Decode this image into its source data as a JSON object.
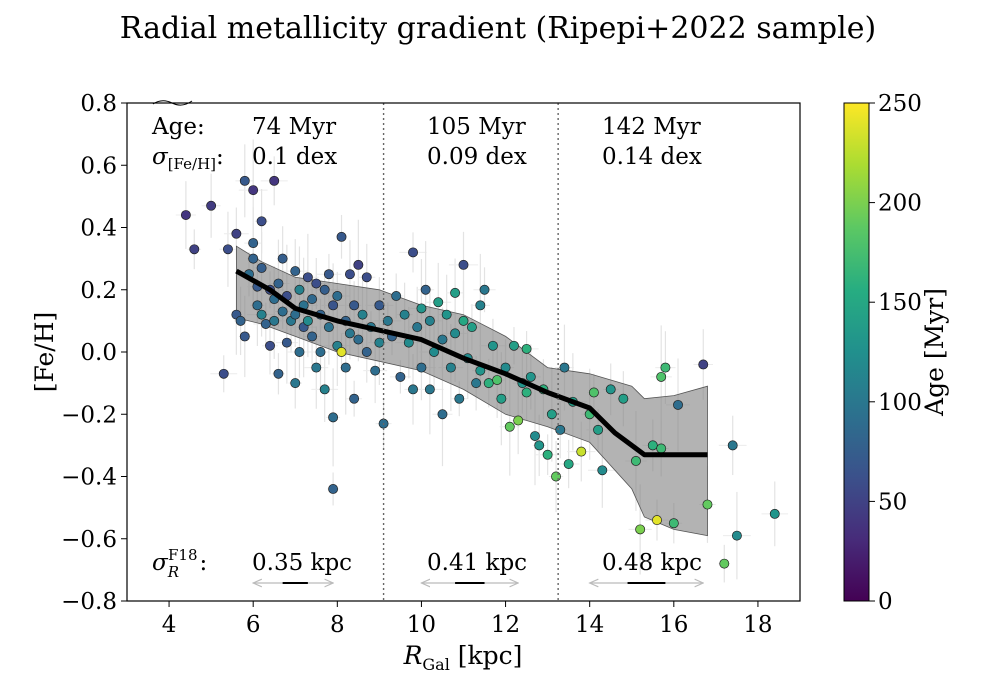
{
  "chart_data": {
    "type": "scatter",
    "title": "Radial metallicity gradient (Ripepi+2022 sample)",
    "xlabel": "R_Gal [kpc]",
    "ylabel": "[Fe/H]",
    "xlim": [
      3,
      19
    ],
    "ylim": [
      -0.8,
      0.8
    ],
    "xticks": [
      "4",
      "6",
      "8",
      "10",
      "12",
      "14",
      "16",
      "18"
    ],
    "yticks": [
      "0.8",
      "0.6",
      "0.4",
      "0.2",
      "0.0",
      "−0.2",
      "−0.4",
      "−0.6",
      "−0.8"
    ],
    "colorbar": {
      "label": "Age [Myr]",
      "range": [
        0,
        250
      ],
      "ticks": [
        "0",
        "50",
        "100",
        "150",
        "200",
        "250"
      ],
      "colormap": "viridis"
    },
    "bin_edges_kpc": [
      9.1,
      13.25
    ],
    "row_labels": {
      "age": "Age:",
      "sigma_feh": "σ[Fe/H]:",
      "sigma_r": "σR F18:"
    },
    "bins": [
      {
        "age": "74 Myr",
        "sigma_feh": "0.1 dex",
        "sigma_r": "0.35 kpc",
        "arrow_from": 6.0,
        "arrow_to": 7.9,
        "bar_from": 6.7,
        "bar_to": 7.3
      },
      {
        "age": "105 Myr",
        "sigma_feh": "0.09 dex",
        "sigma_r": "0.41 kpc",
        "arrow_from": 10.0,
        "arrow_to": 12.3,
        "bar_from": 10.8,
        "bar_to": 11.5
      },
      {
        "age": "142 Myr",
        "sigma_feh": "0.14 dex",
        "sigma_r": "0.48 kpc",
        "arrow_from": 14.0,
        "arrow_to": 16.7,
        "bar_from": 14.9,
        "bar_to": 15.8
      }
    ],
    "running_median": {
      "x": [
        5.6,
        6.4,
        7.0,
        8.0,
        9.0,
        10.0,
        11.0,
        12.0,
        13.0,
        14.0,
        14.6,
        15.3,
        16.0,
        16.8
      ],
      "y": [
        0.26,
        0.2,
        0.14,
        0.1,
        0.07,
        0.04,
        -0.02,
        -0.07,
        -0.13,
        -0.18,
        -0.26,
        -0.33,
        -0.33,
        -0.33
      ]
    },
    "band": {
      "x": [
        5.6,
        6.2,
        7.0,
        8.0,
        9.0,
        10.0,
        11.0,
        12.0,
        13.0,
        14.0,
        15.0,
        15.3,
        16.0,
        16.8
      ],
      "upper": [
        0.34,
        0.29,
        0.24,
        0.22,
        0.2,
        0.15,
        0.12,
        0.05,
        -0.05,
        -0.07,
        -0.11,
        -0.15,
        -0.14,
        -0.11
      ],
      "lower": [
        0.11,
        0.09,
        0.05,
        0.0,
        -0.03,
        -0.06,
        -0.12,
        -0.2,
        -0.24,
        -0.29,
        -0.44,
        -0.53,
        -0.57,
        -0.59
      ]
    },
    "points": [
      [
        4.4,
        0.44,
        40
      ],
      [
        4.6,
        0.33,
        50
      ],
      [
        5.0,
        0.47,
        45
      ],
      [
        5.3,
        -0.07,
        60
      ],
      [
        5.4,
        0.33,
        60
      ],
      [
        5.6,
        0.38,
        50
      ],
      [
        5.6,
        0.12,
        70
      ],
      [
        5.7,
        0.1,
        80
      ],
      [
        5.8,
        0.05,
        70
      ],
      [
        5.8,
        0.55,
        70
      ],
      [
        5.9,
        0.25,
        90
      ],
      [
        6.0,
        0.52,
        40
      ],
      [
        6.0,
        0.35,
        80
      ],
      [
        6.0,
        0.3,
        80
      ],
      [
        6.1,
        0.21,
        70
      ],
      [
        6.1,
        0.15,
        90
      ],
      [
        6.2,
        0.12,
        110
      ],
      [
        6.2,
        0.42,
        60
      ],
      [
        6.2,
        0.27,
        75
      ],
      [
        6.3,
        0.09,
        80
      ],
      [
        6.4,
        0.02,
        60
      ],
      [
        6.4,
        0.2,
        60
      ],
      [
        6.5,
        0.55,
        40
      ],
      [
        6.5,
        0.17,
        90
      ],
      [
        6.5,
        0.1,
        100
      ],
      [
        6.6,
        0.22,
        80
      ],
      [
        6.6,
        -0.07,
        80
      ],
      [
        6.7,
        0.3,
        75
      ],
      [
        6.7,
        0.13,
        90
      ],
      [
        6.8,
        0.03,
        70
      ],
      [
        6.8,
        0.18,
        60
      ],
      [
        6.9,
        0.1,
        100
      ],
      [
        7.0,
        0.26,
        80
      ],
      [
        7.0,
        0.12,
        90
      ],
      [
        7.0,
        -0.1,
        100
      ],
      [
        7.1,
        0.2,
        110
      ],
      [
        7.1,
        0.0,
        90
      ],
      [
        7.2,
        0.15,
        95
      ],
      [
        7.2,
        0.08,
        70
      ],
      [
        7.3,
        0.24,
        60
      ],
      [
        7.3,
        0.1,
        120
      ],
      [
        7.4,
        0.05,
        80
      ],
      [
        7.4,
        0.17,
        85
      ],
      [
        7.5,
        -0.05,
        100
      ],
      [
        7.5,
        0.22,
        60
      ],
      [
        7.6,
        0.12,
        80
      ],
      [
        7.6,
        0.0,
        90
      ],
      [
        7.7,
        0.2,
        75
      ],
      [
        7.7,
        -0.12,
        110
      ],
      [
        7.8,
        0.08,
        95
      ],
      [
        7.8,
        0.25,
        70
      ],
      [
        7.9,
        -0.21,
        90
      ],
      [
        7.9,
        -0.44,
        80
      ],
      [
        7.9,
        0.15,
        65
      ],
      [
        8.0,
        0.02,
        110
      ],
      [
        8.0,
        0.18,
        90
      ],
      [
        8.1,
        0.37,
        70
      ],
      [
        8.1,
        0.0,
        240
      ],
      [
        8.2,
        0.1,
        80
      ],
      [
        8.2,
        -0.05,
        90
      ],
      [
        8.3,
        0.25,
        60
      ],
      [
        8.3,
        0.06,
        100
      ],
      [
        8.4,
        -0.15,
        80
      ],
      [
        8.4,
        0.15,
        70
      ],
      [
        8.5,
        0.28,
        50
      ],
      [
        8.5,
        0.04,
        90
      ],
      [
        8.6,
        0.12,
        110
      ],
      [
        8.7,
        0.0,
        80
      ],
      [
        8.7,
        0.24,
        60
      ],
      [
        8.8,
        0.08,
        100
      ],
      [
        8.9,
        -0.06,
        90
      ],
      [
        9.0,
        0.15,
        70
      ],
      [
        9.0,
        0.03,
        110
      ],
      [
        9.1,
        -0.23,
        90
      ],
      [
        9.2,
        0.1,
        100
      ],
      [
        9.3,
        0.05,
        80
      ],
      [
        9.4,
        0.18,
        90
      ],
      [
        9.5,
        -0.08,
        80
      ],
      [
        9.6,
        0.12,
        110
      ],
      [
        9.7,
        0.03,
        120
      ],
      [
        9.8,
        -0.12,
        100
      ],
      [
        9.8,
        0.32,
        60
      ],
      [
        9.9,
        0.08,
        100
      ],
      [
        10.0,
        0.14,
        130
      ],
      [
        10.0,
        -0.05,
        90
      ],
      [
        10.1,
        0.2,
        80
      ],
      [
        10.2,
        0.1,
        110
      ],
      [
        10.2,
        -0.12,
        100
      ],
      [
        10.3,
        0.0,
        120
      ],
      [
        10.4,
        0.16,
        140
      ],
      [
        10.5,
        0.04,
        100
      ],
      [
        10.5,
        -0.2,
        90
      ],
      [
        10.6,
        0.12,
        130
      ],
      [
        10.7,
        -0.05,
        110
      ],
      [
        10.8,
        0.19,
        140
      ],
      [
        10.8,
        0.06,
        120
      ],
      [
        10.9,
        -0.15,
        100
      ],
      [
        11.0,
        0.28,
        60
      ],
      [
        11.0,
        0.1,
        150
      ],
      [
        11.1,
        -0.02,
        120
      ],
      [
        11.2,
        0.08,
        140
      ],
      [
        11.3,
        -0.1,
        100
      ],
      [
        11.4,
        0.15,
        110
      ],
      [
        11.4,
        -0.06,
        130
      ],
      [
        11.5,
        0.2,
        100
      ],
      [
        11.6,
        -0.1,
        160
      ],
      [
        11.7,
        0.02,
        130
      ],
      [
        11.8,
        -0.09,
        180
      ],
      [
        11.9,
        -0.15,
        140
      ],
      [
        12.0,
        -0.05,
        120
      ],
      [
        12.1,
        -0.24,
        190
      ],
      [
        12.2,
        0.02,
        140
      ],
      [
        12.3,
        -0.22,
        200
      ],
      [
        12.4,
        -0.1,
        130
      ],
      [
        12.5,
        -0.13,
        160
      ],
      [
        12.5,
        0.01,
        160
      ],
      [
        12.6,
        -0.08,
        130
      ],
      [
        12.7,
        -0.27,
        120
      ],
      [
        12.8,
        -0.3,
        130
      ],
      [
        12.9,
        -0.12,
        160
      ],
      [
        13.0,
        -0.33,
        160
      ],
      [
        13.1,
        -0.2,
        140
      ],
      [
        13.2,
        -0.4,
        190
      ],
      [
        13.3,
        -0.25,
        100
      ],
      [
        13.4,
        -0.05,
        100
      ],
      [
        13.5,
        -0.36,
        150
      ],
      [
        13.6,
        -0.16,
        140
      ],
      [
        13.8,
        -0.32,
        230
      ],
      [
        14.0,
        -0.2,
        170
      ],
      [
        14.1,
        -0.13,
        180
      ],
      [
        14.2,
        -0.25,
        140
      ],
      [
        14.3,
        -0.38,
        120
      ],
      [
        14.5,
        -0.12,
        130
      ],
      [
        14.8,
        -0.15,
        140
      ],
      [
        15.1,
        -0.35,
        170
      ],
      [
        15.2,
        -0.57,
        200
      ],
      [
        15.5,
        -0.3,
        160
      ],
      [
        15.6,
        -0.54,
        240
      ],
      [
        15.7,
        -0.08,
        180
      ],
      [
        15.7,
        -0.31,
        170
      ],
      [
        15.8,
        -0.05,
        170
      ],
      [
        16.0,
        -0.55,
        170
      ],
      [
        16.1,
        -0.17,
        90
      ],
      [
        16.7,
        -0.04,
        50
      ],
      [
        16.8,
        -0.49,
        190
      ],
      [
        17.2,
        -0.68,
        190
      ],
      [
        17.4,
        -0.3,
        100
      ],
      [
        17.5,
        -0.59,
        120
      ],
      [
        18.4,
        -0.52,
        130
      ]
    ]
  }
}
